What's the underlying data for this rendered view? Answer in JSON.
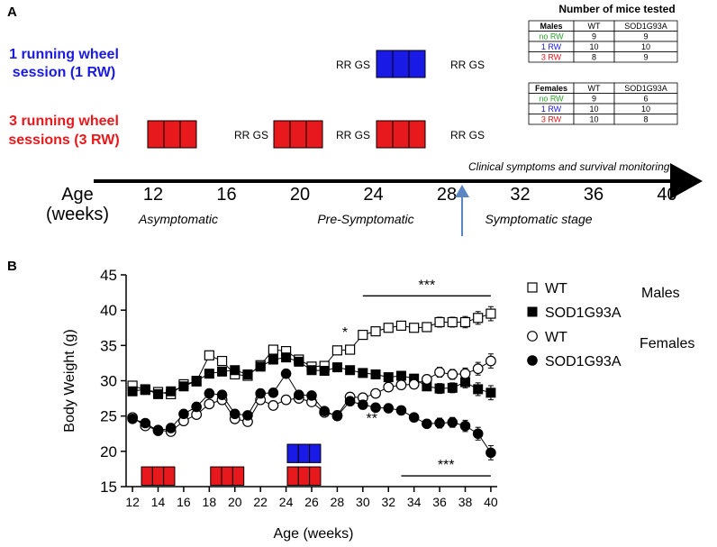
{
  "panel_a": {
    "label": "A",
    "groups": {
      "one_rw": [
        "1 running wheel",
        "session (1 RW)"
      ],
      "three_rw": [
        "3 running wheel",
        "sessions (3 RW)"
      ]
    },
    "rr_gs": "RR GS",
    "clinical_note": "Clinical symptoms and survival monitoring",
    "age_label": [
      "Age",
      "(weeks)"
    ],
    "age_ticks": [
      "12",
      "16",
      "20",
      "24",
      "28",
      "32",
      "36",
      "40"
    ],
    "stages": [
      "Asymptomatic",
      "Pre-Symptomatic",
      "Symptomatic stage"
    ],
    "mice_table": {
      "title": "Number of mice tested",
      "headers": [
        "WT",
        "SOD1G93A"
      ],
      "males": {
        "label": "Males",
        "rows": [
          {
            "group": "no RW",
            "wt": "9",
            "sod": "9"
          },
          {
            "group": "1 RW",
            "wt": "10",
            "sod": "10"
          },
          {
            "group": "3 RW",
            "wt": "8",
            "sod": "9"
          }
        ]
      },
      "females": {
        "label": "Females",
        "rows": [
          {
            "group": "no RW",
            "wt": "9",
            "sod": "6"
          },
          {
            "group": "1 RW",
            "wt": "10",
            "sod": "10"
          },
          {
            "group": "3 RW",
            "wt": "10",
            "sod": "8"
          }
        ]
      }
    }
  },
  "colors": {
    "red": "#e8191c",
    "blue": "#1a1ae6",
    "green": "#2aa52a",
    "arrow_blue": "#5b86c4",
    "black": "#000000"
  },
  "chart_data": {
    "type": "line",
    "panel_label": "B",
    "xlabel": "Age (weeks)",
    "ylabel": "Body Weight (g)",
    "xlim": [
      11.5,
      40.5
    ],
    "ylim": [
      15,
      45
    ],
    "xticks": [
      12,
      14,
      16,
      18,
      20,
      22,
      24,
      26,
      28,
      30,
      32,
      34,
      36,
      38,
      40
    ],
    "yticks": [
      15,
      20,
      25,
      30,
      35,
      40,
      45
    ],
    "x": [
      12,
      13,
      14,
      15,
      16,
      17,
      18,
      19,
      20,
      21,
      22,
      23,
      24,
      25,
      26,
      27,
      28,
      29,
      30,
      31,
      32,
      33,
      34,
      35,
      36,
      37,
      38,
      39,
      40
    ],
    "series": [
      {
        "name": "WT",
        "sex": "Males",
        "marker": "open-square",
        "values": [
          29.3,
          28.7,
          28.4,
          28.1,
          29.5,
          29.9,
          33.6,
          32.8,
          30.9,
          30.7,
          32.2,
          34.4,
          34.2,
          33.0,
          32.0,
          32.1,
          34.3,
          34.4,
          36.5,
          37.0,
          37.5,
          37.8,
          37.5,
          37.6,
          38.3,
          38.3,
          38.3,
          38.9,
          39.5
        ]
      },
      {
        "name": "SOD1G93A",
        "sex": "Males",
        "marker": "filled-square",
        "values": [
          28.5,
          28.8,
          28.1,
          28.5,
          29.2,
          30.0,
          31.0,
          31.3,
          31.5,
          30.9,
          32.0,
          33.0,
          33.3,
          32.7,
          31.5,
          31.4,
          31.9,
          31.5,
          31.1,
          30.9,
          30.5,
          30.7,
          30.3,
          29.2,
          28.9,
          29.0,
          29.8,
          28.8,
          28.3
        ]
      },
      {
        "name": "WT",
        "sex": "Females",
        "marker": "open-circle",
        "values": [
          24.8,
          23.6,
          23.0,
          22.8,
          24.3,
          25.2,
          26.7,
          27.3,
          24.6,
          24.2,
          27.3,
          26.5,
          27.3,
          27.5,
          27.0,
          25.5,
          25.1,
          27.7,
          27.6,
          28.2,
          29.1,
          29.4,
          29.5,
          30.2,
          31.2,
          30.9,
          31.0,
          31.7,
          32.8
        ]
      },
      {
        "name": "SOD1G93A",
        "sex": "Females",
        "marker": "filled-circle",
        "values": [
          24.6,
          24.0,
          22.9,
          23.3,
          25.3,
          26.3,
          28.2,
          28.0,
          25.3,
          25.1,
          28.2,
          28.3,
          31.0,
          28.0,
          27.9,
          25.7,
          25.0,
          27.1,
          26.6,
          26.2,
          26.1,
          25.8,
          24.8,
          23.9,
          24.0,
          24.1,
          23.6,
          22.5,
          19.8
        ]
      }
    ],
    "error": [
      0.5,
      0.4,
      0.4,
      0.4,
      0.5,
      0.5,
      0.6,
      0.6,
      0.6,
      0.5,
      0.6,
      0.6,
      0.6,
      0.6,
      0.5,
      0.5,
      0.6,
      0.6,
      0.6,
      0.6,
      0.6,
      0.6,
      0.6,
      0.6,
      0.7,
      0.7,
      0.8,
      0.9,
      1.0
    ],
    "legend": {
      "entries": [
        "WT",
        "SOD1G93A",
        "WT",
        "SOD1G93A"
      ],
      "group_labels": [
        "Males",
        "Females"
      ],
      "position": "right"
    },
    "annotations": {
      "males_sig": {
        "text": "***",
        "x_from": 30,
        "x_to": 40,
        "y": 43.3
      },
      "single_star": {
        "text": "*",
        "x": 28.6,
        "y": 36.2
      },
      "double_star": {
        "text": "**",
        "x": 30.7,
        "y": 24.0
      },
      "females_sig": {
        "text": "***",
        "x_from": 33,
        "x_to": 40,
        "y": 17.8
      }
    },
    "rw_sessions": [
      {
        "color": "red",
        "x_start": 12.7,
        "x_end": 15.3
      },
      {
        "color": "red",
        "x_start": 18.1,
        "x_end": 20.7
      },
      {
        "color": "red",
        "x_start": 24.1,
        "x_end": 26.7
      },
      {
        "color": "blue",
        "x_start": 24.1,
        "x_end": 26.7
      }
    ]
  }
}
